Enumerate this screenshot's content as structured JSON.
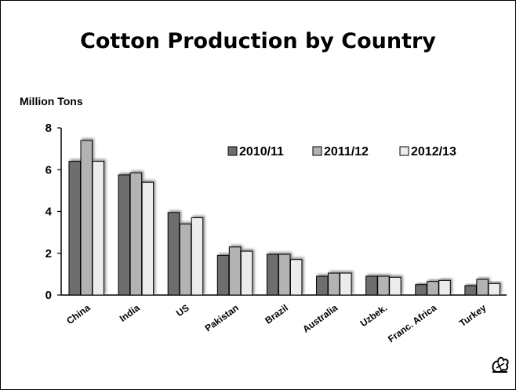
{
  "chart_data": {
    "type": "bar",
    "title": "Cotton Production by Country",
    "ylabel": "Million Tons",
    "xlabel": "",
    "ylim": [
      0,
      8
    ],
    "yticks": [
      0,
      2,
      4,
      6,
      8
    ],
    "grid": false,
    "legend_position": "top-right",
    "categories": [
      "China",
      "India",
      "US",
      "Pakistan",
      "Brazil",
      "Australia",
      "Uzbek.",
      "Franc. Africa",
      "Turkey"
    ],
    "series": [
      {
        "name": "2010/11",
        "color": "#6e6e6e",
        "values": [
          6.4,
          5.75,
          3.95,
          1.9,
          1.95,
          0.9,
          0.9,
          0.5,
          0.45
        ]
      },
      {
        "name": "2011/12",
        "color": "#b3b3b3",
        "values": [
          7.4,
          5.85,
          3.4,
          2.3,
          1.95,
          1.05,
          0.9,
          0.65,
          0.75
        ]
      },
      {
        "name": "2012/13",
        "color": "#ececec",
        "values": [
          6.4,
          5.4,
          3.7,
          2.1,
          1.7,
          1.05,
          0.85,
          0.7,
          0.55
        ]
      }
    ]
  },
  "logo_icon": "cotton-boll-icon"
}
